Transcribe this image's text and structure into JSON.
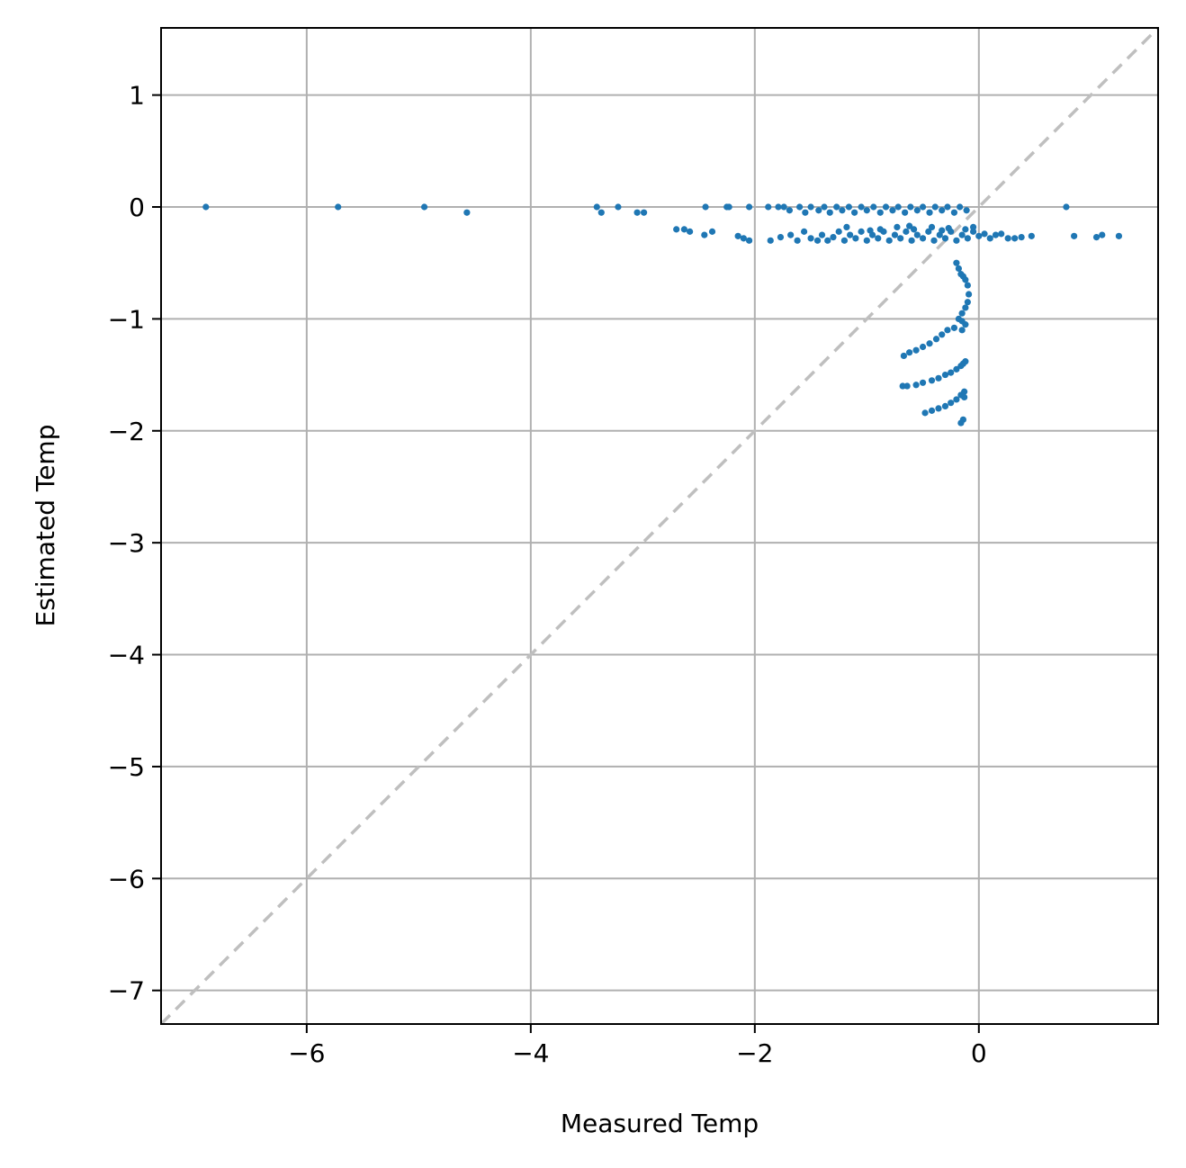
{
  "chart_data": {
    "type": "scatter",
    "xlabel": "Measured Temp",
    "ylabel": "Estimated Temp",
    "xlim": [
      -7.3,
      1.6
    ],
    "ylim": [
      -7.3,
      1.6
    ],
    "x_ticks": [
      -6,
      -4,
      -2,
      0
    ],
    "y_ticks": [
      1,
      0,
      -1,
      -2,
      -3,
      -4,
      -5,
      -6,
      -7
    ],
    "x_tick_labels": [
      "−6",
      "−4",
      "−2",
      "0"
    ],
    "y_tick_labels": [
      "1",
      "0",
      "−1",
      "−2",
      "−3",
      "−4",
      "−5",
      "−6",
      "−7"
    ],
    "grid": true,
    "reference_line": {
      "style": "dashed",
      "color": "#bfbfbf",
      "x": [
        -7.3,
        1.6
      ],
      "y": [
        -7.3,
        1.6
      ]
    },
    "point_color": "#1f77b4",
    "points": [
      [
        -6.9,
        0.0
      ],
      [
        -5.72,
        0.0
      ],
      [
        -4.95,
        0.0
      ],
      [
        -4.57,
        -0.05
      ],
      [
        -3.41,
        0.0
      ],
      [
        -3.37,
        -0.05
      ],
      [
        -3.22,
        0.0
      ],
      [
        -3.05,
        -0.05
      ],
      [
        -2.99,
        -0.05
      ],
      [
        -2.44,
        0.0
      ],
      [
        -2.25,
        0.0
      ],
      [
        -2.23,
        0.0
      ],
      [
        -2.05,
        0.0
      ],
      [
        -1.88,
        0.0
      ],
      [
        -1.79,
        0.0
      ],
      [
        -1.74,
        0.0
      ],
      [
        -1.69,
        -0.03
      ],
      [
        -1.6,
        0.0
      ],
      [
        -1.55,
        -0.05
      ],
      [
        -1.5,
        0.0
      ],
      [
        -1.43,
        -0.03
      ],
      [
        -1.38,
        0.0
      ],
      [
        -1.33,
        -0.05
      ],
      [
        -1.27,
        0.0
      ],
      [
        -1.22,
        -0.03
      ],
      [
        -1.16,
        0.0
      ],
      [
        -1.11,
        -0.05
      ],
      [
        -1.05,
        0.0
      ],
      [
        -1.0,
        -0.03
      ],
      [
        -0.94,
        0.0
      ],
      [
        -0.88,
        -0.05
      ],
      [
        -0.83,
        0.0
      ],
      [
        -0.77,
        -0.03
      ],
      [
        -0.72,
        0.0
      ],
      [
        -0.66,
        -0.05
      ],
      [
        -0.61,
        0.0
      ],
      [
        -0.55,
        -0.03
      ],
      [
        -0.5,
        0.0
      ],
      [
        -0.44,
        -0.05
      ],
      [
        -0.39,
        0.0
      ],
      [
        -0.33,
        -0.03
      ],
      [
        -0.28,
        0.0
      ],
      [
        -0.22,
        -0.05
      ],
      [
        -0.17,
        0.0
      ],
      [
        -0.11,
        -0.03
      ],
      [
        0.78,
        0.0
      ],
      [
        -2.7,
        -0.2
      ],
      [
        -2.63,
        -0.2
      ],
      [
        -2.58,
        -0.22
      ],
      [
        -2.45,
        -0.25
      ],
      [
        -2.38,
        -0.22
      ],
      [
        -2.15,
        -0.26
      ],
      [
        -2.1,
        -0.28
      ],
      [
        -2.05,
        -0.3
      ],
      [
        -1.86,
        -0.3
      ],
      [
        -1.77,
        -0.27
      ],
      [
        -1.68,
        -0.25
      ],
      [
        -1.62,
        -0.3
      ],
      [
        -1.56,
        -0.22
      ],
      [
        -1.5,
        -0.28
      ],
      [
        -1.44,
        -0.3
      ],
      [
        -1.4,
        -0.25
      ],
      [
        -1.35,
        -0.3
      ],
      [
        -1.3,
        -0.27
      ],
      [
        -1.25,
        -0.22
      ],
      [
        -1.2,
        -0.3
      ],
      [
        -1.15,
        -0.25
      ],
      [
        -1.1,
        -0.28
      ],
      [
        -1.05,
        -0.22
      ],
      [
        -1.0,
        -0.3
      ],
      [
        -0.95,
        -0.25
      ],
      [
        -0.9,
        -0.28
      ],
      [
        -0.85,
        -0.22
      ],
      [
        -0.8,
        -0.3
      ],
      [
        -0.75,
        -0.25
      ],
      [
        -0.7,
        -0.28
      ],
      [
        -0.65,
        -0.22
      ],
      [
        -0.6,
        -0.3
      ],
      [
        -0.55,
        -0.25
      ],
      [
        -0.5,
        -0.28
      ],
      [
        -0.45,
        -0.22
      ],
      [
        -0.4,
        -0.3
      ],
      [
        -0.35,
        -0.25
      ],
      [
        -0.3,
        -0.28
      ],
      [
        -0.25,
        -0.22
      ],
      [
        -0.2,
        -0.3
      ],
      [
        -0.15,
        -0.25
      ],
      [
        -0.1,
        -0.28
      ],
      [
        -0.05,
        -0.22
      ],
      [
        0.0,
        -0.26
      ],
      [
        0.05,
        -0.24
      ],
      [
        0.1,
        -0.28
      ],
      [
        0.15,
        -0.25
      ],
      [
        0.2,
        -0.24
      ],
      [
        0.26,
        -0.28
      ],
      [
        0.32,
        -0.28
      ],
      [
        0.38,
        -0.27
      ],
      [
        0.47,
        -0.26
      ],
      [
        0.85,
        -0.26
      ],
      [
        1.05,
        -0.27
      ],
      [
        1.1,
        -0.25
      ],
      [
        1.25,
        -0.26
      ],
      [
        -0.88,
        -0.2
      ],
      [
        -0.73,
        -0.18
      ],
      [
        -0.58,
        -0.2
      ],
      [
        -0.42,
        -0.18
      ],
      [
        -0.27,
        -0.19
      ],
      [
        -0.12,
        -0.2
      ],
      [
        -1.18,
        -0.18
      ],
      [
        -0.97,
        -0.21
      ],
      [
        -0.62,
        -0.17
      ],
      [
        -0.33,
        -0.21
      ],
      [
        -0.05,
        -0.18
      ],
      [
        -0.2,
        -0.5
      ],
      [
        -0.18,
        -0.55
      ],
      [
        -0.16,
        -0.6
      ],
      [
        -0.14,
        -0.62
      ],
      [
        -0.12,
        -0.65
      ],
      [
        -0.1,
        -0.7
      ],
      [
        -0.09,
        -0.78
      ],
      [
        -0.1,
        -0.85
      ],
      [
        -0.12,
        -0.9
      ],
      [
        -0.15,
        -0.95
      ],
      [
        -0.18,
        -1.0
      ],
      [
        -0.15,
        -1.02
      ],
      [
        -0.12,
        -1.05
      ],
      [
        -0.22,
        -1.08
      ],
      [
        -0.28,
        -1.1
      ],
      [
        -0.33,
        -1.14
      ],
      [
        -0.38,
        -1.18
      ],
      [
        -0.44,
        -1.22
      ],
      [
        -0.5,
        -1.25
      ],
      [
        -0.56,
        -1.28
      ],
      [
        -0.62,
        -1.3
      ],
      [
        -0.67,
        -1.33
      ],
      [
        -0.15,
        -1.1
      ],
      [
        -0.12,
        -1.38
      ],
      [
        -0.16,
        -1.42
      ],
      [
        -0.2,
        -1.45
      ],
      [
        -0.25,
        -1.48
      ],
      [
        -0.3,
        -1.5
      ],
      [
        -0.36,
        -1.53
      ],
      [
        -0.42,
        -1.55
      ],
      [
        -0.5,
        -1.57
      ],
      [
        -0.56,
        -1.59
      ],
      [
        -0.64,
        -1.6
      ],
      [
        -0.68,
        -1.6
      ],
      [
        -0.14,
        -1.4
      ],
      [
        -0.13,
        -1.65
      ],
      [
        -0.16,
        -1.68
      ],
      [
        -0.2,
        -1.72
      ],
      [
        -0.25,
        -1.75
      ],
      [
        -0.3,
        -1.78
      ],
      [
        -0.36,
        -1.8
      ],
      [
        -0.42,
        -1.82
      ],
      [
        -0.48,
        -1.84
      ],
      [
        -0.14,
        -1.9
      ],
      [
        -0.16,
        -1.93
      ],
      [
        -0.13,
        -1.7
      ]
    ]
  }
}
